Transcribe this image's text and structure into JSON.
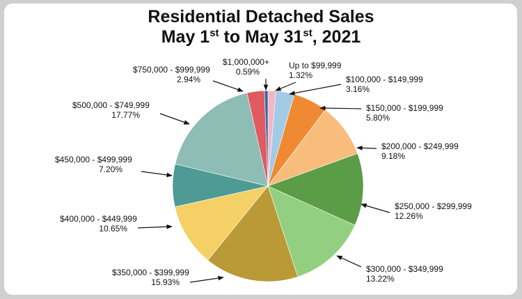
{
  "chart_data": {
    "type": "pie",
    "title": {
      "line1": "Residential Detached Sales",
      "line2_prefix": "May 1",
      "line2_sup1": "st",
      "line2_mid": " to May 31",
      "line2_sup2": "st",
      "line2_suffix": ", 2021"
    },
    "legend": "none",
    "slices": [
      {
        "label": "Up to $99,999",
        "value_label": "1.32%",
        "value": 1.32,
        "color": "#f2b6c6"
      },
      {
        "label": "$100,000 - $149,999",
        "value_label": "3.16%",
        "value": 3.16,
        "color": "#a4cbe6"
      },
      {
        "label": "$150,000 - $199,999",
        "value_label": "5.80%",
        "value": 5.8,
        "color": "#ef8a33"
      },
      {
        "label": "$200,000 - $249,999",
        "value_label": "9.18%",
        "value": 9.18,
        "color": "#f8bd7d"
      },
      {
        "label": "$250,000 - $299,999",
        "value_label": "12.26%",
        "value": 12.26,
        "color": "#5b9c46"
      },
      {
        "label": "$300,000 - $349,999",
        "value_label": "13.22%",
        "value": 13.22,
        "color": "#93cf80"
      },
      {
        "label": "$350,000 - $399,999",
        "value_label": "15.93%",
        "value": 15.93,
        "color": "#b99a36"
      },
      {
        "label": "$400,000 - $449,999",
        "value_label": "10.65%",
        "value": 10.65,
        "color": "#f4d067"
      },
      {
        "label": "$450,000 - $499,999",
        "value_label": "7.20%",
        "value": 7.2,
        "color": "#4e9a95"
      },
      {
        "label": "$500,000 - $749,999",
        "value_label": "17.77%",
        "value": 17.77,
        "color": "#8dbdb5"
      },
      {
        "label": "$750,000 - $999,999",
        "value_label": "2.94%",
        "value": 2.94,
        "color": "#e05a60"
      },
      {
        "label": "$1,000,000+",
        "value_label": "0.59%",
        "value": 0.59,
        "color": "#3468a6"
      }
    ]
  }
}
